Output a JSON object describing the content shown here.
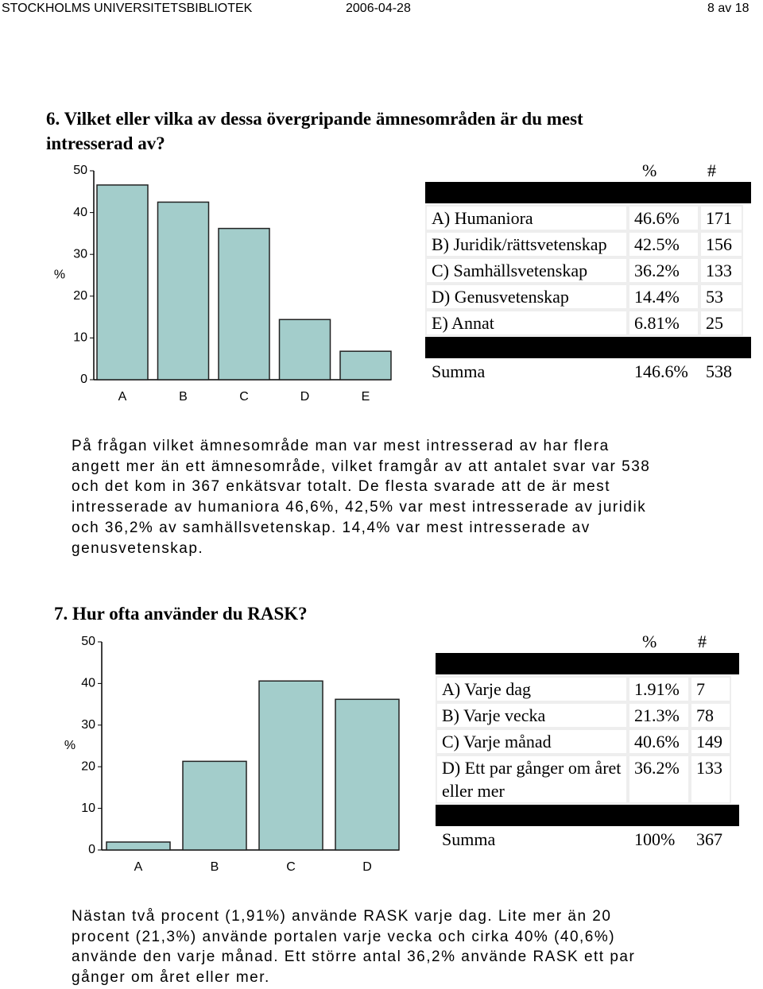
{
  "header": {
    "left": "STOCKHOLMS UNIVERSITETSBIBLIOTEK",
    "date": "2006-04-28",
    "page": "8 av 18"
  },
  "sections": [
    {
      "title": "6. Vilket eller vilka av dessa övergripande ämnesområden är du mest intresserad av?",
      "table": {
        "headers": [
          "%",
          "#"
        ],
        "rows": [
          [
            "A) Humaniora",
            "46.6%",
            "171"
          ],
          [
            "B) Juridik/rättsvetenskap",
            "42.5%",
            "156"
          ],
          [
            "C) Samhällsvetenskap",
            "36.2%",
            "133"
          ],
          [
            "D) Genusvetenskap",
            "14.4%",
            "53"
          ],
          [
            "E) Annat",
            "6.81%",
            "25"
          ]
        ],
        "total": [
          "Summa",
          "146.6%",
          "538"
        ]
      },
      "text": [
        "På frågan vilket ämnesområde man var mest intresserad av har flera",
        "angett mer än ett ämnesområde, vilket framgår av att antalet svar var 538",
        "och det kom in 367 enkätsvar totalt. De flesta svarade att de är mest",
        "intresserade av humaniora 46,6%, 42,5% var mest intresserade av juridik",
        "och 36,2% av samhällsvetenskap. 14,4% var mest intresserade av",
        "genusvetenskap."
      ]
    },
    {
      "title": "7. Hur ofta använder du RASK?",
      "table": {
        "headers": [
          "%",
          "#"
        ],
        "rows": [
          [
            "A) Varje dag",
            "1.91%",
            "7"
          ],
          [
            "B) Varje vecka",
            "21.3%",
            "78"
          ],
          [
            "C) Varje månad",
            "40.6%",
            "149"
          ],
          [
            "D) Ett par gånger om året eller mer",
            "36.2%",
            "133"
          ]
        ],
        "total": [
          "Summa",
          "100%",
          "367"
        ]
      },
      "text": [
        "Nästan två procent (1,91%) använde RASK varje dag. Lite mer än 20",
        "procent (21,3%) använde portalen varje vecka och cirka 40% (40,6%)",
        "använde den varje månad. Ett större antal 36,2% använde RASK ett par",
        "gånger om året eller mer."
      ]
    }
  ],
  "chart_data": [
    {
      "type": "bar",
      "y_label": "%",
      "categories": [
        "A",
        "B",
        "C",
        "D",
        "E"
      ],
      "values": [
        46.6,
        42.5,
        36.2,
        14.4,
        6.81
      ],
      "color": "#a3cdcb",
      "ylim": [
        0,
        50
      ],
      "yticks": [
        0,
        10,
        20,
        30,
        40,
        50
      ]
    },
    {
      "type": "bar",
      "y_label": "%",
      "categories": [
        "A",
        "B",
        "C",
        "D"
      ],
      "values": [
        1.91,
        21.3,
        40.6,
        36.2
      ],
      "color": "#a3cdcb",
      "ylim": [
        0,
        50
      ],
      "yticks": [
        0,
        10,
        20,
        30,
        40,
        50
      ]
    }
  ]
}
